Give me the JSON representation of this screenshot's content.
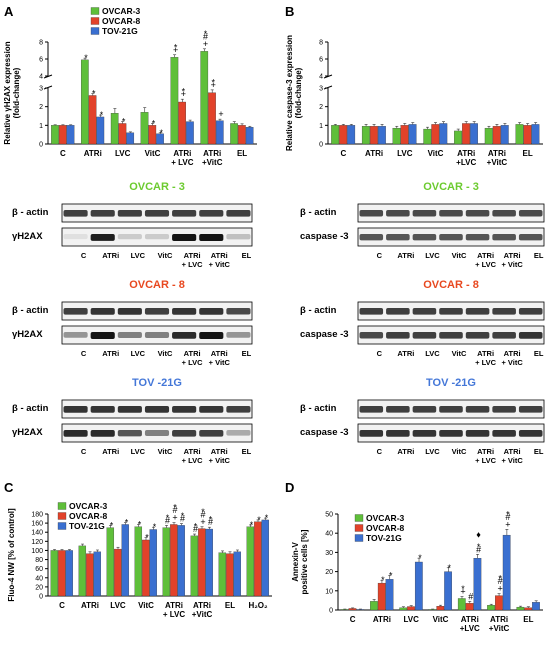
{
  "panels": {
    "A": "A",
    "B": "B",
    "C": "C",
    "D": "D"
  },
  "colors": {
    "OVCAR-3": "#5fbf3a",
    "OVCAR-8": "#e2422a",
    "TOV-21G": "#3a6fd0",
    "ovcar3_title": "#6ccb2f",
    "ovcar8_title": "#e8481f",
    "tov21g_title": "#4477d8"
  },
  "legend": [
    "OVCAR-3",
    "OVCAR-8",
    "TOV-21G"
  ],
  "chart_data": [
    {
      "panel": "A",
      "type": "bar",
      "ylabel": [
        "Relative γH2AX expression",
        "(fold-change)"
      ],
      "categories": [
        "C",
        "ATRi",
        "LVC",
        "VitC",
        "ATRi\n+ LVC",
        "ATRi\n+VitC",
        "EL"
      ],
      "axis_break": true,
      "ylim_lower": [
        0,
        3
      ],
      "ylim_upper": [
        4,
        8
      ],
      "yticks": [
        0,
        1,
        2,
        3,
        4,
        6,
        8
      ],
      "series": [
        {
          "name": "OVCAR-3",
          "values": [
            1.0,
            5.9,
            1.65,
            1.7,
            6.2,
            6.9,
            1.1
          ],
          "errors": [
            0.03,
            0.2,
            0.25,
            0.25,
            0.3,
            0.3,
            0.1
          ]
        },
        {
          "name": "OVCAR-8",
          "values": [
            1.0,
            2.6,
            1.1,
            1.0,
            2.25,
            2.75,
            1.0
          ],
          "errors": [
            0.03,
            0.1,
            0.1,
            0.1,
            0.15,
            0.15,
            0.08
          ]
        },
        {
          "name": "TOV-21G",
          "values": [
            1.0,
            1.45,
            0.6,
            0.55,
            1.2,
            1.25,
            0.9
          ],
          "errors": [
            0.03,
            0.1,
            0.05,
            0.05,
            0.08,
            0.08,
            0.05
          ]
        }
      ],
      "annotations": [
        {
          "cat": 1,
          "series": 0,
          "text": [
            "*"
          ]
        },
        {
          "cat": 1,
          "series": 1,
          "text": [
            "*"
          ]
        },
        {
          "cat": 1,
          "series": 2,
          "text": [
            "*"
          ]
        },
        {
          "cat": 2,
          "series": 1,
          "text": [
            "*"
          ]
        },
        {
          "cat": 3,
          "series": 1,
          "text": [
            "*"
          ]
        },
        {
          "cat": 3,
          "series": 2,
          "text": [
            "*"
          ]
        },
        {
          "cat": 4,
          "series": 0,
          "text": [
            "*",
            "+"
          ]
        },
        {
          "cat": 4,
          "series": 1,
          "text": [
            "*",
            "+"
          ]
        },
        {
          "cat": 5,
          "series": 0,
          "text": [
            "*",
            "#",
            "+"
          ]
        },
        {
          "cat": 5,
          "series": 1,
          "text": [
            "*",
            "+"
          ]
        },
        {
          "cat": 5,
          "series": 2,
          "text": [
            "+"
          ]
        }
      ]
    },
    {
      "panel": "B",
      "type": "bar",
      "ylabel": [
        "Relative caspase-3 expression",
        "(fold-change)"
      ],
      "categories": [
        "C",
        "ATRi",
        "LVC",
        "VitC",
        "ATRi\n+LVC",
        "ATRi\n+VitC",
        "EL"
      ],
      "axis_break": true,
      "ylim_lower": [
        0,
        3
      ],
      "ylim_upper": [
        4,
        8
      ],
      "yticks": [
        0,
        1,
        2,
        3,
        4,
        6,
        8
      ],
      "series": [
        {
          "name": "OVCAR-3",
          "values": [
            1.0,
            0.95,
            0.85,
            0.8,
            0.7,
            0.85,
            1.05
          ],
          "errors": [
            0.05,
            0.1,
            0.1,
            0.1,
            0.1,
            0.1,
            0.1
          ]
        },
        {
          "name": "OVCAR-8",
          "values": [
            1.0,
            0.95,
            1.0,
            1.05,
            1.1,
            0.95,
            1.0
          ],
          "errors": [
            0.05,
            0.1,
            0.1,
            0.1,
            0.1,
            0.1,
            0.1
          ]
        },
        {
          "name": "TOV-21G",
          "values": [
            1.0,
            0.95,
            1.05,
            1.1,
            1.1,
            1.0,
            1.05
          ],
          "errors": [
            0.05,
            0.1,
            0.1,
            0.1,
            0.1,
            0.1,
            0.1
          ]
        }
      ],
      "annotations": []
    },
    {
      "panel": "C",
      "type": "bar",
      "ylabel": [
        "Fluo-4 NW [% of control]"
      ],
      "categories": [
        "C",
        "ATRi",
        "LVC",
        "VitC",
        "ATRi\n+ LVC",
        "ATRi\n+VitC",
        "EL",
        "H₂O₂"
      ],
      "ylim": [
        0,
        180
      ],
      "yticks": [
        0,
        20,
        40,
        60,
        80,
        100,
        120,
        140,
        160,
        180
      ],
      "series": [
        {
          "name": "OVCAR-3",
          "values": [
            100,
            110,
            150,
            152,
            150,
            132,
            95,
            152
          ],
          "errors": [
            2,
            4,
            5,
            5,
            5,
            4,
            4,
            4
          ]
        },
        {
          "name": "OVCAR-8",
          "values": [
            100,
            93,
            103,
            123,
            157,
            148,
            93,
            163
          ],
          "errors": [
            2,
            4,
            4,
            5,
            4,
            4,
            4,
            4
          ]
        },
        {
          "name": "TOV-21G",
          "values": [
            100,
            97,
            157,
            146,
            155,
            147,
            97,
            167
          ],
          "errors": [
            2,
            4,
            4,
            5,
            4,
            4,
            4,
            4
          ]
        }
      ],
      "annotations": [
        {
          "cat": 2,
          "series": 0,
          "text": [
            "*"
          ]
        },
        {
          "cat": 2,
          "series": 2,
          "text": [
            "*"
          ]
        },
        {
          "cat": 3,
          "series": 0,
          "text": [
            "*"
          ]
        },
        {
          "cat": 3,
          "series": 1,
          "text": [
            "*"
          ]
        },
        {
          "cat": 3,
          "series": 2,
          "text": [
            "*"
          ]
        },
        {
          "cat": 4,
          "series": 0,
          "text": [
            "*",
            "#"
          ]
        },
        {
          "cat": 4,
          "series": 1,
          "text": [
            "*",
            "#",
            "+"
          ]
        },
        {
          "cat": 4,
          "series": 2,
          "text": [
            "*",
            "#"
          ]
        },
        {
          "cat": 5,
          "series": 0,
          "text": [
            "*",
            "#"
          ]
        },
        {
          "cat": 5,
          "series": 1,
          "text": [
            "*",
            "#",
            "+"
          ]
        },
        {
          "cat": 5,
          "series": 2,
          "text": [
            "*",
            "#"
          ]
        },
        {
          "cat": 7,
          "series": 0,
          "text": [
            "*"
          ]
        },
        {
          "cat": 7,
          "series": 1,
          "text": [
            "*"
          ]
        },
        {
          "cat": 7,
          "series": 2,
          "text": [
            "*"
          ]
        }
      ]
    },
    {
      "panel": "D",
      "type": "bar",
      "ylabel": [
        "Annexin-V",
        "positive cells [%]"
      ],
      "categories": [
        "C",
        "ATRi",
        "LVC",
        "VitC",
        "ATRi\n+LVC",
        "ATRi\n+VitC",
        "EL"
      ],
      "ylim": [
        0,
        50
      ],
      "yticks": [
        0,
        10,
        20,
        30,
        40,
        50
      ],
      "series": [
        {
          "name": "OVCAR-3",
          "values": [
            0.3,
            4.5,
            1.2,
            0.3,
            6.0,
            2.5,
            1.5
          ],
          "errors": [
            0.2,
            1.0,
            0.5,
            0.2,
            1.0,
            0.5,
            0.5
          ]
        },
        {
          "name": "OVCAR-8",
          "values": [
            0.8,
            14,
            1.8,
            2.0,
            3.5,
            7.5,
            1.2
          ],
          "errors": [
            0.3,
            1.5,
            0.5,
            0.5,
            1.0,
            1.0,
            0.5
          ]
        },
        {
          "name": "TOV-21G",
          "values": [
            0.3,
            16,
            25,
            20,
            27,
            39,
            4.0
          ],
          "errors": [
            0.2,
            2.0,
            2.0,
            2.0,
            2.0,
            3.0,
            0.8
          ]
        }
      ],
      "annotations": [
        {
          "cat": 1,
          "series": 1,
          "text": [
            "*"
          ]
        },
        {
          "cat": 1,
          "series": 2,
          "text": [
            "*"
          ]
        },
        {
          "cat": 2,
          "series": 2,
          "text": [
            "*"
          ]
        },
        {
          "cat": 3,
          "series": 2,
          "text": [
            "*"
          ]
        },
        {
          "cat": 4,
          "series": 0,
          "text": [
            "*",
            "+"
          ]
        },
        {
          "cat": 4,
          "series": 1,
          "text": [
            "#"
          ]
        },
        {
          "cat": 4,
          "series": 2,
          "text": [
            "♦",
            "*",
            "#"
          ]
        },
        {
          "cat": 5,
          "series": 1,
          "text": [
            "*",
            "#",
            "+"
          ]
        },
        {
          "cat": 5,
          "series": 2,
          "text": [
            "*",
            "#",
            "+"
          ]
        }
      ]
    }
  ],
  "blots": {
    "A": [
      {
        "cell": "OVCAR - 3",
        "colorKey": "ovcar3_title",
        "rows": [
          "β - actin",
          "γH2AX"
        ]
      },
      {
        "cell": "OVCAR - 8",
        "colorKey": "ovcar8_title",
        "rows": [
          "β - actin",
          "γH2AX"
        ]
      },
      {
        "cell": "TOV -21G",
        "colorKey": "tov21g_title",
        "rows": [
          "β - actin",
          "γH2AX"
        ]
      }
    ],
    "B": [
      {
        "cell": "OVCAR - 3",
        "colorKey": "ovcar3_title",
        "rows": [
          "β - actin",
          "caspase -3"
        ]
      },
      {
        "cell": "OVCAR - 8",
        "colorKey": "ovcar8_title",
        "rows": [
          "β - actin",
          "caspase -3"
        ]
      },
      {
        "cell": "TOV -21G",
        "colorKey": "tov21g_title",
        "rows": [
          "β - actin",
          "caspase -3"
        ]
      }
    ],
    "lanes": [
      "C",
      "ATRi",
      "LVC",
      "VitC",
      "ATRi",
      "ATRi",
      "EL"
    ],
    "lanes_sub": [
      "+ LVC",
      "+ VitC"
    ],
    "intensity_A": [
      {
        "actin": [
          0.8,
          0.8,
          0.8,
          0.8,
          0.8,
          0.8,
          0.8
        ],
        "target": [
          0.05,
          0.95,
          0.15,
          0.15,
          1.0,
          1.0,
          0.2
        ]
      },
      {
        "actin": [
          0.8,
          0.85,
          0.85,
          0.8,
          0.85,
          0.85,
          0.75
        ],
        "target": [
          0.4,
          1.0,
          0.5,
          0.5,
          0.9,
          1.0,
          0.4
        ]
      },
      {
        "actin": [
          0.85,
          0.85,
          0.85,
          0.85,
          0.85,
          0.85,
          0.8
        ],
        "target": [
          0.9,
          0.9,
          0.7,
          0.5,
          0.8,
          0.8,
          0.3
        ]
      }
    ],
    "intensity_B": [
      {
        "actin": [
          0.75,
          0.75,
          0.75,
          0.75,
          0.75,
          0.75,
          0.75
        ],
        "target": [
          0.7,
          0.7,
          0.7,
          0.7,
          0.7,
          0.7,
          0.7
        ]
      },
      {
        "actin": [
          0.8,
          0.8,
          0.8,
          0.8,
          0.8,
          0.8,
          0.8
        ],
        "target": [
          0.75,
          0.8,
          0.8,
          0.8,
          0.8,
          0.8,
          0.85
        ]
      },
      {
        "actin": [
          0.8,
          0.8,
          0.8,
          0.8,
          0.8,
          0.8,
          0.8
        ],
        "target": [
          0.85,
          0.85,
          0.85,
          0.85,
          0.85,
          0.85,
          0.85
        ]
      }
    ]
  }
}
